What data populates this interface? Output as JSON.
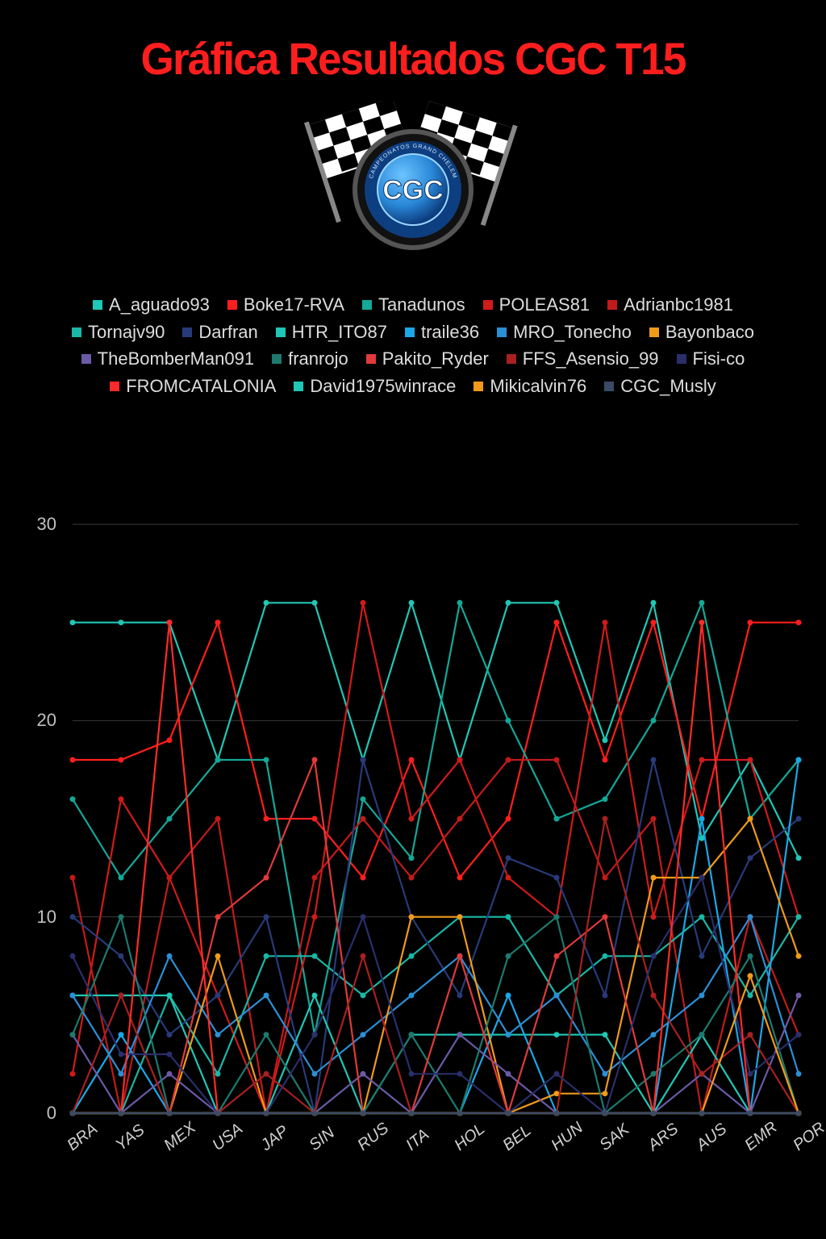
{
  "title_text": "Gráfica Resultados CGC T15",
  "title_color": "#ff1e1e",
  "title_fontsize": 56,
  "background_color": "#000000",
  "legend_fontsize": 22,
  "logo": {
    "label": "CGC",
    "subtext": "CAMPEONATOS GRAND CHELEM",
    "ring_color": "#2a88d8",
    "disc_colors": [
      "#2a88d8",
      "#0d3e80"
    ],
    "text_color": "#ffffff"
  },
  "chart": {
    "type": "line",
    "categories": [
      "BRA",
      "YAS",
      "MEX",
      "USA",
      "JAP",
      "SIN",
      "RUS",
      "ITA",
      "HOL",
      "BEL",
      "HUN",
      "SAK",
      "ARS",
      "AUS",
      "EMR",
      "POR"
    ],
    "ylim": [
      0,
      30
    ],
    "yticks": [
      0,
      10,
      20,
      30
    ],
    "grid_color": "#3a3a3a",
    "axis_label_color": "#c0c0c0",
    "tick_fontsize": 22,
    "xtick_fontsize": 20,
    "xtick_rotation_deg": -38,
    "line_width": 2.2,
    "marker_radius": 3.5,
    "plot_background": "#000000"
  },
  "series": [
    {
      "name": "A_aguado93",
      "color": "#1fc7b6",
      "values": [
        25,
        25,
        25,
        18,
        26,
        26,
        18,
        26,
        18,
        26,
        26,
        19,
        26,
        14,
        18,
        13
      ]
    },
    {
      "name": "Boke17-RVA",
      "color": "#ff1e1e",
      "values": [
        18,
        18,
        19,
        25,
        15,
        15,
        12,
        18,
        12,
        15,
        25,
        18,
        25,
        15,
        25,
        25
      ]
    },
    {
      "name": "Tanadunos",
      "color": "#13a898",
      "values": [
        16,
        12,
        15,
        18,
        18,
        4,
        16,
        13,
        26,
        20,
        15,
        16,
        20,
        26,
        15,
        18
      ]
    },
    {
      "name": "POLEAS81",
      "color": "#d11a1a",
      "values": [
        2,
        16,
        12,
        6,
        0,
        10,
        26,
        15,
        18,
        12,
        10,
        25,
        10,
        18,
        18,
        10
      ]
    },
    {
      "name": "Adrianbc1981",
      "color": "#c21a1a",
      "values": [
        12,
        0,
        12,
        15,
        0,
        12,
        15,
        12,
        15,
        18,
        18,
        12,
        15,
        0,
        10,
        4
      ]
    },
    {
      "name": "Tornajv90",
      "color": "#19b8a6",
      "values": [
        0,
        0,
        6,
        2,
        8,
        8,
        6,
        8,
        10,
        10,
        6,
        8,
        8,
        10,
        6,
        10
      ]
    },
    {
      "name": "Darfran",
      "color": "#283a7a",
      "values": [
        10,
        8,
        4,
        6,
        10,
        0,
        18,
        10,
        6,
        13,
        12,
        6,
        18,
        8,
        13,
        15
      ]
    },
    {
      "name": "HTR_ITO87",
      "color": "#20c7b6",
      "values": [
        6,
        6,
        6,
        0,
        0,
        6,
        0,
        4,
        4,
        4,
        4,
        4,
        0,
        4,
        0,
        0
      ]
    },
    {
      "name": "traile36",
      "color": "#1aa8e8",
      "values": [
        0,
        4,
        0,
        0,
        0,
        0,
        0,
        0,
        0,
        6,
        0,
        0,
        0,
        15,
        0,
        18
      ]
    },
    {
      "name": "MRO_Tonecho",
      "color": "#2b8fd6",
      "values": [
        6,
        2,
        8,
        4,
        6,
        2,
        4,
        6,
        8,
        4,
        6,
        2,
        4,
        6,
        10,
        2
      ]
    },
    {
      "name": "Bayonbaco",
      "color": "#f09a1a",
      "values": [
        0,
        0,
        0,
        8,
        0,
        0,
        0,
        10,
        10,
        0,
        1,
        1,
        12,
        12,
        15,
        8
      ]
    },
    {
      "name": "TheBomberMan091",
      "color": "#6b5aa8",
      "values": [
        4,
        0,
        2,
        0,
        0,
        0,
        2,
        0,
        4,
        2,
        0,
        0,
        0,
        2,
        0,
        6
      ]
    },
    {
      "name": "franrojo",
      "color": "#1c7a6e",
      "values": [
        4,
        10,
        0,
        0,
        4,
        0,
        0,
        4,
        0,
        8,
        10,
        0,
        2,
        4,
        8,
        0
      ]
    },
    {
      "name": "Pakito_Ryder",
      "color": "#e03a3a",
      "values": [
        0,
        0,
        0,
        10,
        12,
        18,
        0,
        0,
        8,
        0,
        8,
        10,
        0,
        0,
        0,
        0
      ]
    },
    {
      "name": "FFS_Asensio_99",
      "color": "#a82020",
      "values": [
        0,
        6,
        0,
        0,
        2,
        0,
        8,
        0,
        0,
        0,
        0,
        15,
        6,
        2,
        4,
        0
      ]
    },
    {
      "name": "Fisi-co",
      "color": "#2a2e6b",
      "values": [
        8,
        3,
        3,
        0,
        0,
        4,
        10,
        2,
        2,
        0,
        2,
        0,
        8,
        12,
        2,
        4
      ]
    },
    {
      "name": "FROMCATALONIA",
      "color": "#ff2a2a",
      "values": [
        0,
        0,
        25,
        0,
        0,
        0,
        0,
        0,
        0,
        0,
        0,
        0,
        0,
        25,
        0,
        0
      ]
    },
    {
      "name": "David1975winrace",
      "color": "#1fc7b6",
      "values": [
        0,
        0,
        0,
        0,
        0,
        0,
        0,
        0,
        0,
        0,
        0,
        0,
        0,
        0,
        0,
        0
      ]
    },
    {
      "name": "Mikicalvin76",
      "color": "#f09a1a",
      "values": [
        0,
        0,
        0,
        0,
        0,
        0,
        0,
        0,
        0,
        0,
        0,
        0,
        0,
        0,
        7,
        0
      ]
    },
    {
      "name": "CGC_Musly",
      "color": "#3a4a66",
      "values": [
        0,
        0,
        0,
        0,
        0,
        0,
        0,
        0,
        0,
        0,
        0,
        0,
        0,
        0,
        0,
        0
      ]
    }
  ]
}
